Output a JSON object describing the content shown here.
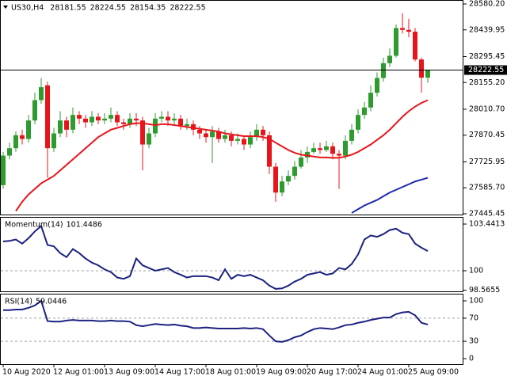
{
  "chart_data": [
    {
      "type": "candlestick",
      "title": "US30,H4",
      "up_color": "#2e9b2e",
      "down_color": "#e8141b",
      "open": [
        27600,
        27760,
        27800,
        27870,
        27850,
        27950,
        28060,
        28140,
        27800,
        27880,
        27950,
        27900,
        27980,
        27960,
        27940,
        27970,
        27950,
        27960,
        27980,
        27940,
        27930,
        27960,
        27950,
        27820,
        27880,
        27960,
        27970,
        27950,
        27960,
        27920,
        27930,
        27900,
        27880,
        27860,
        27890,
        27850,
        27870,
        27840,
        27850,
        27820,
        27860,
        27900,
        27870,
        27700,
        27560,
        27620,
        27650,
        27700,
        27750,
        27780,
        27800,
        27790,
        27810,
        27770,
        27760,
        27840,
        27900,
        27980,
        28020,
        28100,
        28180,
        28260,
        28300,
        28450,
        28440,
        28430,
        28280,
        28181.55
      ],
      "high": [
        27780,
        27830,
        27890,
        27900,
        27980,
        28100,
        28180,
        28160,
        27910,
        28000,
        27970,
        28020,
        28000,
        27980,
        28000,
        27990,
        27990,
        28020,
        28000,
        27960,
        27990,
        27990,
        27970,
        27910,
        27990,
        28000,
        28000,
        27990,
        27980,
        27960,
        27950,
        27920,
        27900,
        27920,
        27910,
        27900,
        27890,
        27880,
        27870,
        27890,
        27930,
        27920,
        27890,
        27720,
        27650,
        27680,
        27730,
        27790,
        27810,
        27830,
        27830,
        27840,
        27830,
        27790,
        27870,
        27930,
        28010,
        28050,
        28140,
        28210,
        28290,
        28340,
        28470,
        28530,
        28500,
        28450,
        28290,
        28224.55
      ],
      "low": [
        27580,
        27740,
        27780,
        27820,
        27830,
        27930,
        28040,
        27640,
        27780,
        27860,
        27860,
        27880,
        27930,
        27910,
        27920,
        27930,
        27930,
        27940,
        27920,
        27900,
        27910,
        27920,
        27680,
        27800,
        27860,
        27940,
        27920,
        27930,
        27900,
        27900,
        27870,
        27850,
        27830,
        27720,
        27830,
        27830,
        27810,
        27820,
        27790,
        27800,
        27840,
        27840,
        27660,
        27510,
        27540,
        27600,
        27630,
        27690,
        27720,
        27770,
        27770,
        27780,
        27740,
        27580,
        27740,
        27820,
        27880,
        27960,
        28000,
        28080,
        28160,
        28240,
        28290,
        28420,
        28400,
        28270,
        28100,
        28154.35
      ],
      "close": [
        27760,
        27800,
        27870,
        27850,
        27950,
        28060,
        28130,
        27800,
        27880,
        27950,
        27900,
        27980,
        27960,
        27940,
        27970,
        27950,
        27960,
        27980,
        27940,
        27930,
        27960,
        27950,
        27820,
        27880,
        27960,
        27970,
        27950,
        27960,
        27920,
        27930,
        27900,
        27880,
        27860,
        27890,
        27850,
        27870,
        27840,
        27850,
        27820,
        27860,
        27900,
        27870,
        27700,
        27560,
        27620,
        27650,
        27700,
        27750,
        27780,
        27800,
        27790,
        27810,
        27770,
        27760,
        27840,
        27900,
        27980,
        28020,
        28100,
        28180,
        28260,
        28300,
        28450,
        28440,
        28430,
        28280,
        28181.55,
        28222.55
      ],
      "series": [
        {
          "color": "#e8151b",
          "values": [
            null,
            null,
            27460,
            27510,
            27550,
            27580,
            27610,
            27630,
            27650,
            27680,
            27710,
            27740,
            27770,
            27800,
            27830,
            27860,
            27880,
            27900,
            27910,
            27920,
            27930,
            27935,
            27935,
            27930,
            27925,
            27930,
            27930,
            27925,
            27920,
            27915,
            27910,
            27905,
            27900,
            27895,
            27890,
            27880,
            27875,
            27870,
            27865,
            27865,
            27865,
            27860,
            27850,
            27830,
            27810,
            27790,
            27775,
            27765,
            27760,
            27755,
            27750,
            27750,
            27748,
            27748,
            27755,
            27765,
            27780,
            27800,
            27820,
            27845,
            27870,
            27900,
            27935,
            27970,
            28000,
            28025,
            28045,
            28060
          ]
        },
        {
          "color": "#1a2bb0",
          "values": [
            null,
            null,
            null,
            null,
            null,
            null,
            null,
            null,
            null,
            null,
            null,
            null,
            null,
            null,
            null,
            null,
            null,
            null,
            null,
            null,
            null,
            null,
            null,
            null,
            null,
            null,
            null,
            null,
            null,
            null,
            null,
            null,
            null,
            null,
            null,
            null,
            null,
            null,
            null,
            null,
            null,
            null,
            null,
            null,
            null,
            null,
            null,
            null,
            null,
            null,
            null,
            null,
            null,
            null,
            null,
            27450,
            27470,
            27490,
            27505,
            27520,
            27540,
            27560,
            27575,
            27590,
            27605,
            27620,
            27630,
            27640
          ]
        }
      ],
      "ylim": [
        27445.45,
        28580.2
      ],
      "yticks": [
        {
          "value": 27445.45,
          "label": "27445.45"
        },
        {
          "value": 27585.7,
          "label": "27585.70"
        },
        27725.95,
        27870.45,
        {
          "value": 28010.7,
          "label": "28010.70"
        },
        {
          "value": 28155.2,
          "label": "28155.20"
        },
        28295.45,
        28439.95,
        {
          "value": 28580.2,
          "label": "28580.20"
        }
      ],
      "xticks": [
        {
          "value": 0,
          "label": "10 Aug 2020"
        },
        {
          "value": 8,
          "label": "12 Aug 01:00"
        },
        {
          "value": 16,
          "label": "13 Aug 09:00"
        },
        {
          "value": 24,
          "label": "14 Aug 17:00"
        },
        {
          "value": 32,
          "label": "18 Aug 01:00"
        },
        {
          "value": 40,
          "label": "19 Aug 09:00"
        },
        {
          "value": 48,
          "label": "20 Aug 17:00"
        },
        {
          "value": 56,
          "label": "24 Aug 01:00"
        },
        {
          "value": 64,
          "label": "25 Aug 09:00"
        }
      ]
    },
    {
      "type": "line",
      "title": "Momentum(14)",
      "series": [
        {
          "color": "#1c2280",
          "values": [
            102.16,
            102.2,
            102.3,
            102.0,
            102.4,
            102.9,
            103.3,
            101.9,
            101.8,
            101.3,
            101.0,
            101.6,
            101.3,
            100.9,
            100.6,
            100.4,
            100.1,
            99.9,
            99.5,
            99.4,
            99.6,
            100.9,
            100.4,
            100.2,
            100.0,
            100.1,
            100.2,
            99.9,
            99.7,
            99.5,
            99.6,
            99.6,
            99.6,
            99.5,
            99.3,
            100.1,
            99.4,
            99.7,
            99.6,
            99.7,
            99.5,
            99.3,
            98.9,
            98.66,
            98.7,
            98.9,
            99.2,
            99.4,
            99.7,
            99.8,
            99.9,
            99.7,
            99.8,
            100.2,
            100.1,
            100.5,
            101.2,
            102.3,
            102.6,
            102.5,
            102.7,
            103.0,
            103.1,
            102.8,
            102.7,
            102.0,
            101.7,
            101.4486
          ]
        }
      ],
      "ylim": [
        98.48,
        103.91
      ],
      "yticks": [
        98.5655,
        100,
        103.4413
      ],
      "level_lines": [
        100
      ]
    },
    {
      "type": "line",
      "title": "RSI(14)",
      "series": [
        {
          "color": "#1c2280",
          "values": [
            84,
            84,
            85,
            85,
            88,
            92,
            100,
            65,
            64,
            64,
            66,
            67,
            66,
            66,
            66,
            65,
            65,
            66,
            65,
            65,
            64,
            58,
            56,
            58,
            60,
            59,
            58,
            59,
            57,
            56,
            53,
            53,
            54,
            53,
            52,
            52,
            52,
            52,
            53,
            52,
            53,
            51,
            40,
            30,
            29,
            32,
            37,
            40,
            46,
            51,
            53,
            52,
            51,
            54,
            58,
            59,
            62,
            64,
            67,
            69,
            71,
            71,
            77,
            80,
            81,
            75,
            62,
            59.0446
          ]
        }
      ],
      "ylim": [
        -9.6,
        111
      ],
      "yticks": [
        0,
        30,
        70,
        100
      ],
      "level_lines": [
        30,
        70
      ]
    }
  ]
}
